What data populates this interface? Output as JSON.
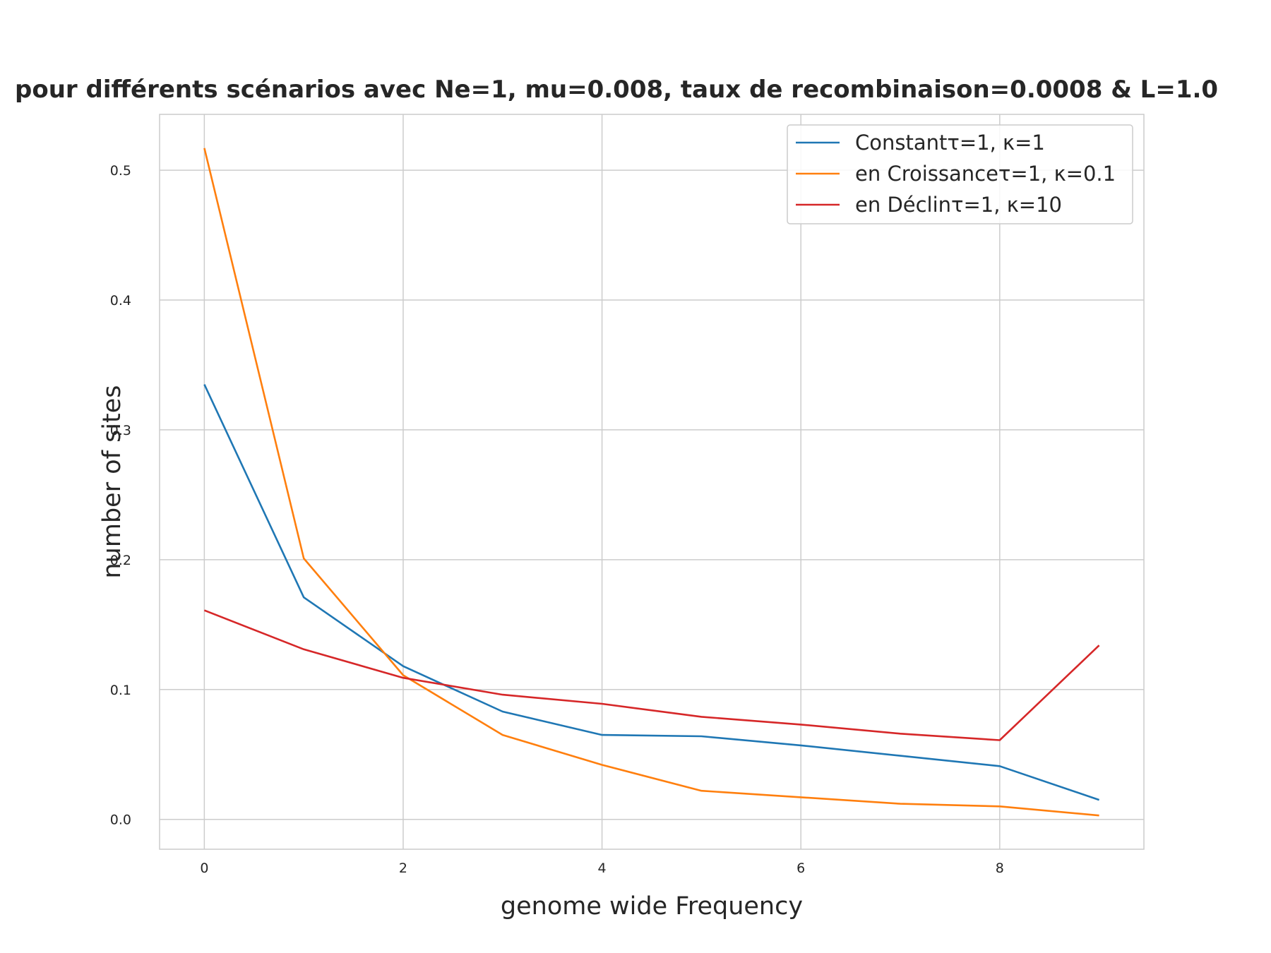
{
  "chart_data": {
    "type": "line",
    "title": "pour différents scénarios avec Ne=1, mu=0.008, taux de recombinaison=0.0008 & L=1.0",
    "xlabel": "genome wide Frequency",
    "ylabel": "number of sites",
    "x": [
      0,
      1,
      2,
      3,
      4,
      5,
      6,
      7,
      8,
      9
    ],
    "xlim": [
      -0.45,
      9.45
    ],
    "ylim": [
      -0.023,
      0.543
    ],
    "xticks": [
      0,
      2,
      4,
      6,
      8
    ],
    "yticks": [
      0.0,
      0.1,
      0.2,
      0.3,
      0.4,
      0.5
    ],
    "xtick_labels": [
      "0",
      "2",
      "4",
      "6",
      "8"
    ],
    "ytick_labels": [
      "0.0",
      "0.1",
      "0.2",
      "0.3",
      "0.4",
      "0.5"
    ],
    "grid": true,
    "legend_position": "top-right",
    "series": [
      {
        "name": "Constantτ=1, κ=1",
        "color": "#1f77b4",
        "values": [
          0.335,
          0.171,
          0.118,
          0.083,
          0.065,
          0.064,
          0.057,
          0.049,
          0.041,
          0.015
        ]
      },
      {
        "name": "en Croissanceτ=1, κ=0.1",
        "color": "#ff7f0e",
        "values": [
          0.517,
          0.201,
          0.111,
          0.065,
          0.042,
          0.022,
          0.017,
          0.012,
          0.01,
          0.003
        ]
      },
      {
        "name": "en Déclinτ=1, κ=10",
        "color": "#d62728",
        "values": [
          0.161,
          0.131,
          0.109,
          0.096,
          0.089,
          0.079,
          0.073,
          0.066,
          0.061,
          0.134
        ]
      }
    ]
  }
}
